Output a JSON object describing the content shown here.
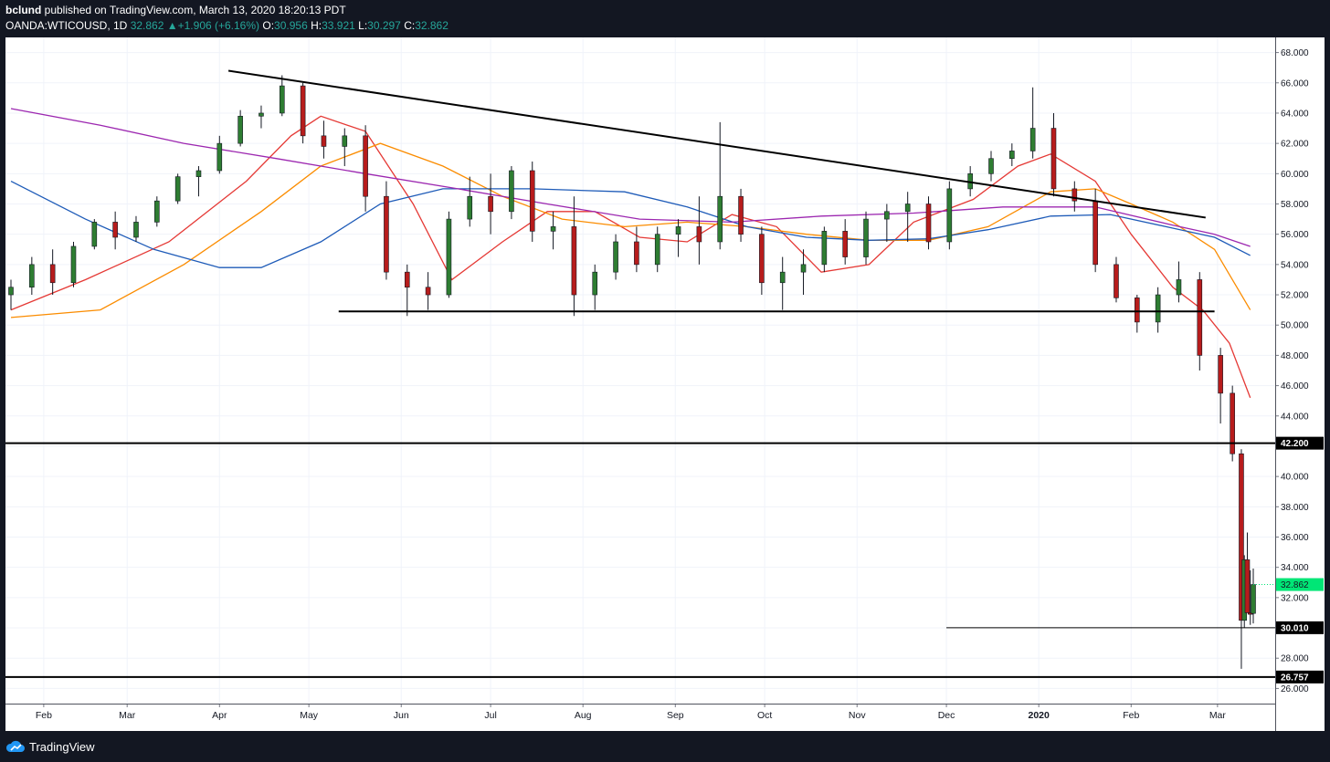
{
  "header": {
    "user": "bclund",
    "published_text": " published on TradingView.com, March 13, 2020 18:20:13 PDT",
    "symbol": "OANDA:WTICOUSD, 1D",
    "last": "32.862",
    "change_arrow": "▲",
    "change": "+1.906 (+6.16%)",
    "o_label": "O:",
    "o_value": "30.956",
    "h_label": "H:",
    "h_value": "33.921",
    "l_label": "L:",
    "l_value": "30.297",
    "c_label": "C:",
    "c_value": "32.862"
  },
  "footer": {
    "brand": "TradingView",
    "logo_icon": "tradingview-cloud-icon"
  },
  "colors": {
    "up": "#26a69a",
    "down": "#ef5350",
    "candle_up_body": "#2e7d32",
    "candle_down_body": "#b71c1c",
    "ma_red": "#e53935",
    "ma_orange": "#fb8c00",
    "ma_blue": "#1e5bb8",
    "ma_purple": "#9c27b0",
    "current_price_bg": "#00e676"
  },
  "chart_data": {
    "type": "candlestick",
    "y_axis": {
      "min": 25,
      "max": 69,
      "tick_labels": [
        "26.000",
        "28.000",
        "30.000",
        "32.000",
        "34.000",
        "36.000",
        "38.000",
        "40.000",
        "42.000",
        "44.000",
        "46.000",
        "48.000",
        "50.000",
        "52.000",
        "54.000",
        "56.000",
        "58.000",
        "60.000",
        "62.000",
        "64.000",
        "66.000",
        "68.000"
      ]
    },
    "x_axis": {
      "tick_labels": [
        "Feb",
        "Mar",
        "Apr",
        "May",
        "Jun",
        "Jul",
        "Aug",
        "Sep",
        "Oct",
        "Nov",
        "Dec",
        "2020",
        "Feb",
        "Mar"
      ],
      "tick_dates": [
        "2019-02-01",
        "2019-03-01",
        "2019-04-01",
        "2019-05-01",
        "2019-06-01",
        "2019-07-01",
        "2019-08-01",
        "2019-09-01",
        "2019-10-01",
        "2019-11-01",
        "2019-12-01",
        "2020-01-01",
        "2020-02-01",
        "2020-03-01"
      ],
      "start_date": "2019-01-21",
      "end_date": "2020-03-13"
    },
    "price_levels": [
      {
        "label": "42.200",
        "value": 42.2
      },
      {
        "label": "30.010",
        "value": 30.01
      },
      {
        "label": "26.757",
        "value": 26.757
      }
    ],
    "current_price": {
      "label": "32.862",
      "value": 32.862
    },
    "trendlines": [
      {
        "name": "descending-resistance",
        "from": {
          "date": "2019-04-04",
          "value": 66.8
        },
        "to": {
          "date": "2020-02-26",
          "value": 57.1
        }
      },
      {
        "name": "horizontal-support",
        "from": {
          "date": "2019-05-11",
          "value": 50.9
        },
        "to": {
          "date": "2020-02-29",
          "value": 50.9
        }
      }
    ],
    "moving_averages": [
      {
        "color": "red",
        "points": [
          [
            "2019-01-21",
            51.0
          ],
          [
            "2019-02-15",
            53.0
          ],
          [
            "2019-03-15",
            55.5
          ],
          [
            "2019-04-10",
            59.5
          ],
          [
            "2019-04-25",
            62.5
          ],
          [
            "2019-05-05",
            63.8
          ],
          [
            "2019-05-20",
            62.8
          ],
          [
            "2019-06-05",
            58.0
          ],
          [
            "2019-06-18",
            53.0
          ],
          [
            "2019-07-05",
            55.5
          ],
          [
            "2019-07-20",
            57.5
          ],
          [
            "2019-08-05",
            57.5
          ],
          [
            "2019-08-20",
            55.8
          ],
          [
            "2019-09-05",
            55.5
          ],
          [
            "2019-09-20",
            57.3
          ],
          [
            "2019-10-05",
            56.5
          ],
          [
            "2019-10-20",
            53.5
          ],
          [
            "2019-11-05",
            54.0
          ],
          [
            "2019-11-20",
            56.8
          ],
          [
            "2019-12-10",
            58.3
          ],
          [
            "2019-12-25",
            60.5
          ],
          [
            "2020-01-05",
            61.3
          ],
          [
            "2020-01-20",
            59.5
          ],
          [
            "2020-02-01",
            56.0
          ],
          [
            "2020-02-15",
            52.5
          ],
          [
            "2020-02-25",
            51.0
          ],
          [
            "2020-03-05",
            48.8
          ],
          [
            "2020-03-12",
            45.2
          ]
        ]
      },
      {
        "color": "orange",
        "points": [
          [
            "2019-01-21",
            50.5
          ],
          [
            "2019-02-20",
            51.0
          ],
          [
            "2019-03-20",
            54.0
          ],
          [
            "2019-04-15",
            57.5
          ],
          [
            "2019-05-05",
            60.5
          ],
          [
            "2019-05-25",
            62.0
          ],
          [
            "2019-06-15",
            60.5
          ],
          [
            "2019-07-05",
            58.5
          ],
          [
            "2019-07-25",
            57.0
          ],
          [
            "2019-08-15",
            56.5
          ],
          [
            "2019-09-05",
            56.8
          ],
          [
            "2019-09-25",
            56.5
          ],
          [
            "2019-10-15",
            56.0
          ],
          [
            "2019-11-05",
            55.6
          ],
          [
            "2019-11-25",
            55.6
          ],
          [
            "2019-12-15",
            56.5
          ],
          [
            "2020-01-05",
            58.8
          ],
          [
            "2020-01-20",
            59.0
          ],
          [
            "2020-02-01",
            58.0
          ],
          [
            "2020-02-15",
            56.8
          ],
          [
            "2020-02-29",
            55.0
          ],
          [
            "2020-03-12",
            51.0
          ]
        ]
      },
      {
        "color": "blue",
        "points": [
          [
            "2019-01-21",
            59.5
          ],
          [
            "2019-02-15",
            57.0
          ],
          [
            "2019-03-10",
            55.0
          ],
          [
            "2019-04-01",
            53.8
          ],
          [
            "2019-04-15",
            53.8
          ],
          [
            "2019-05-05",
            55.5
          ],
          [
            "2019-05-25",
            58.0
          ],
          [
            "2019-06-15",
            59.0
          ],
          [
            "2019-07-15",
            59.0
          ],
          [
            "2019-08-15",
            58.8
          ],
          [
            "2019-09-05",
            57.8
          ],
          [
            "2019-09-25",
            56.5
          ],
          [
            "2019-10-15",
            55.8
          ],
          [
            "2019-11-05",
            55.6
          ],
          [
            "2019-11-25",
            55.7
          ],
          [
            "2019-12-15",
            56.3
          ],
          [
            "2020-01-05",
            57.2
          ],
          [
            "2020-01-25",
            57.3
          ],
          [
            "2020-02-15",
            56.4
          ],
          [
            "2020-02-29",
            55.8
          ],
          [
            "2020-03-12",
            54.6
          ]
        ]
      },
      {
        "color": "purple",
        "points": [
          [
            "2019-01-21",
            64.3
          ],
          [
            "2019-02-20",
            63.2
          ],
          [
            "2019-03-20",
            62.0
          ],
          [
            "2019-04-20",
            61.0
          ],
          [
            "2019-05-20",
            60.0
          ],
          [
            "2019-06-20",
            59.0
          ],
          [
            "2019-07-20",
            58.0
          ],
          [
            "2019-08-20",
            57.0
          ],
          [
            "2019-09-20",
            56.8
          ],
          [
            "2019-10-20",
            57.2
          ],
          [
            "2019-11-20",
            57.4
          ],
          [
            "2019-12-20",
            57.8
          ],
          [
            "2020-01-20",
            57.8
          ],
          [
            "2020-02-15",
            56.6
          ],
          [
            "2020-02-29",
            56.0
          ],
          [
            "2020-03-12",
            55.2
          ]
        ]
      }
    ],
    "candles": [
      [
        "2019-01-21",
        52.0,
        53.0,
        51.0,
        52.5
      ],
      [
        "2019-01-28",
        52.5,
        54.5,
        52.0,
        54.0
      ],
      [
        "2019-02-04",
        54.0,
        55.0,
        52.0,
        52.8
      ],
      [
        "2019-02-11",
        52.8,
        55.5,
        52.5,
        55.2
      ],
      [
        "2019-02-18",
        55.2,
        57.0,
        55.0,
        56.8
      ],
      [
        "2019-02-25",
        56.8,
        57.5,
        55.0,
        55.8
      ],
      [
        "2019-03-04",
        55.8,
        57.2,
        55.5,
        56.8
      ],
      [
        "2019-03-11",
        56.8,
        58.5,
        56.5,
        58.2
      ],
      [
        "2019-03-18",
        58.2,
        60.0,
        58.0,
        59.8
      ],
      [
        "2019-03-25",
        59.8,
        60.5,
        58.5,
        60.2
      ],
      [
        "2019-04-01",
        60.2,
        62.5,
        60.0,
        62.0
      ],
      [
        "2019-04-08",
        62.0,
        64.2,
        61.8,
        63.8
      ],
      [
        "2019-04-15",
        63.8,
        64.5,
        63.0,
        64.0
      ],
      [
        "2019-04-22",
        64.0,
        66.5,
        63.8,
        65.8
      ],
      [
        "2019-04-29",
        65.8,
        66.0,
        62.0,
        62.5
      ],
      [
        "2019-05-06",
        62.5,
        63.5,
        61.0,
        61.8
      ],
      [
        "2019-05-13",
        61.8,
        63.0,
        60.5,
        62.5
      ],
      [
        "2019-05-20",
        62.5,
        63.2,
        57.5,
        58.5
      ],
      [
        "2019-05-27",
        58.5,
        59.5,
        53.0,
        53.5
      ],
      [
        "2019-06-03",
        53.5,
        54.0,
        50.6,
        52.5
      ],
      [
        "2019-06-10",
        52.5,
        53.5,
        51.0,
        52.0
      ],
      [
        "2019-06-17",
        52.0,
        57.5,
        51.8,
        57.0
      ],
      [
        "2019-06-24",
        57.0,
        59.8,
        56.5,
        58.5
      ],
      [
        "2019-07-01",
        58.5,
        60.0,
        56.0,
        57.5
      ],
      [
        "2019-07-08",
        57.5,
        60.5,
        57.0,
        60.2
      ],
      [
        "2019-07-15",
        60.2,
        60.8,
        55.5,
        56.2
      ],
      [
        "2019-07-22",
        56.2,
        57.5,
        55.0,
        56.5
      ],
      [
        "2019-07-29",
        56.5,
        58.5,
        50.6,
        52.0
      ],
      [
        "2019-08-05",
        52.0,
        54.0,
        51.0,
        53.5
      ],
      [
        "2019-08-12",
        53.5,
        56.0,
        53.0,
        55.5
      ],
      [
        "2019-08-19",
        55.5,
        56.5,
        53.5,
        54.0
      ],
      [
        "2019-08-26",
        54.0,
        56.5,
        53.5,
        56.0
      ],
      [
        "2019-09-02",
        56.0,
        57.0,
        54.5,
        56.5
      ],
      [
        "2019-09-09",
        56.5,
        58.5,
        54.0,
        55.5
      ],
      [
        "2019-09-16",
        55.5,
        63.4,
        55.0,
        58.5
      ],
      [
        "2019-09-23",
        58.5,
        59.0,
        55.5,
        56.0
      ],
      [
        "2019-09-30",
        56.0,
        56.5,
        52.0,
        52.8
      ],
      [
        "2019-10-07",
        52.8,
        54.5,
        51.0,
        53.5
      ],
      [
        "2019-10-14",
        53.5,
        55.0,
        52.0,
        54.0
      ],
      [
        "2019-10-21",
        54.0,
        56.5,
        53.5,
        56.2
      ],
      [
        "2019-10-28",
        56.2,
        57.0,
        54.0,
        54.5
      ],
      [
        "2019-11-04",
        54.5,
        57.5,
        54.0,
        57.0
      ],
      [
        "2019-11-11",
        57.0,
        58.0,
        55.5,
        57.5
      ],
      [
        "2019-11-18",
        57.5,
        58.8,
        55.5,
        58.0
      ],
      [
        "2019-11-25",
        58.0,
        58.5,
        55.0,
        55.5
      ],
      [
        "2019-12-02",
        55.5,
        59.5,
        55.0,
        59.0
      ],
      [
        "2019-12-09",
        59.0,
        60.5,
        58.5,
        60.0
      ],
      [
        "2019-12-16",
        60.0,
        61.5,
        59.5,
        61.0
      ],
      [
        "2019-12-23",
        61.0,
        62.0,
        60.5,
        61.5
      ],
      [
        "2019-12-30",
        61.5,
        65.7,
        61.0,
        63.0
      ],
      [
        "2020-01-06",
        63.0,
        64.0,
        58.5,
        59.0
      ],
      [
        "2020-01-13",
        59.0,
        59.5,
        57.5,
        58.2
      ],
      [
        "2020-01-20",
        58.2,
        59.0,
        53.5,
        54.0
      ],
      [
        "2020-01-27",
        54.0,
        54.5,
        51.5,
        51.8
      ],
      [
        "2020-02-03",
        51.8,
        52.0,
        49.5,
        50.2
      ],
      [
        "2020-02-10",
        50.2,
        52.5,
        49.5,
        52.0
      ],
      [
        "2020-02-17",
        52.0,
        54.2,
        51.5,
        53.0
      ],
      [
        "2020-02-24",
        53.0,
        53.5,
        47.0,
        48.0
      ],
      [
        "2020-03-02",
        48.0,
        48.5,
        43.5,
        45.5
      ],
      [
        "2020-03-06",
        45.5,
        46.0,
        41.0,
        41.5
      ],
      [
        "2020-03-09",
        41.5,
        41.8,
        27.3,
        30.5
      ],
      [
        "2020-03-10",
        30.5,
        34.8,
        30.0,
        34.5
      ],
      [
        "2020-03-11",
        34.5,
        36.3,
        31.0,
        31.0
      ],
      [
        "2020-03-12",
        31.0,
        33.8,
        30.2,
        30.9
      ],
      [
        "2020-03-13",
        30.956,
        33.921,
        30.297,
        32.862
      ]
    ]
  }
}
